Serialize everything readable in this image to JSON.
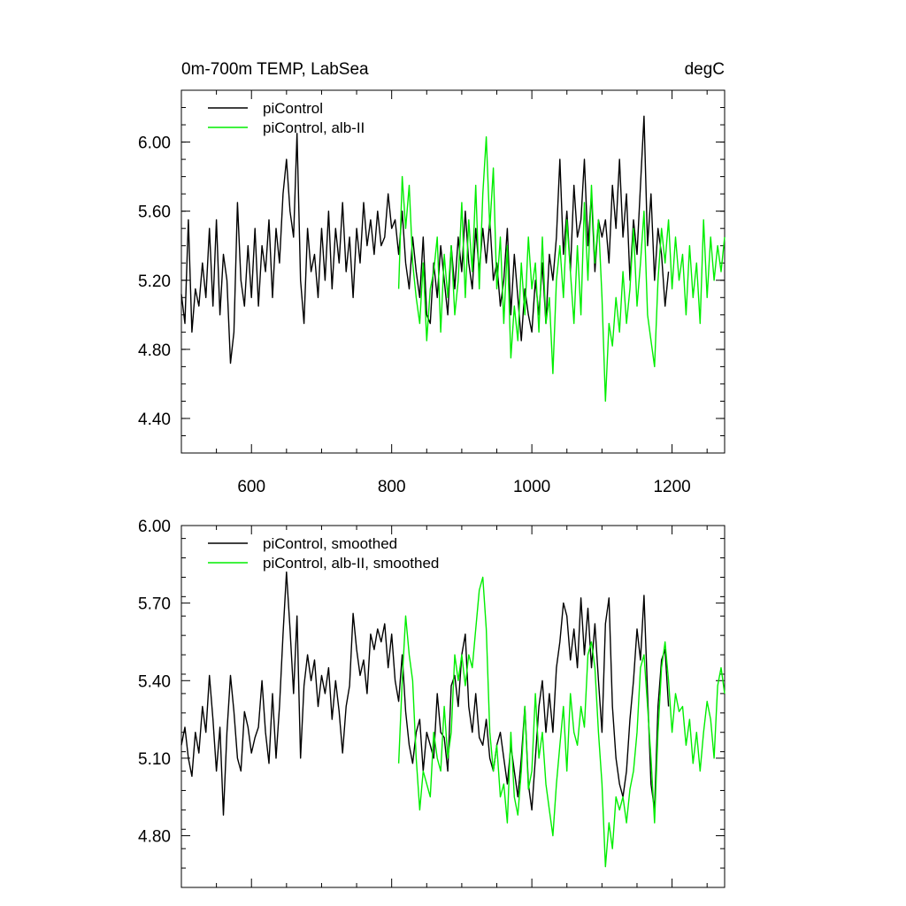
{
  "chart_data": [
    {
      "type": "line",
      "title": "0m-700m TEMP, LabSea",
      "units": "degC",
      "xlabel": "",
      "ylabel": "",
      "xlim": [
        500,
        1275
      ],
      "ylim": [
        4.2,
        6.3
      ],
      "xticks": [
        600,
        800,
        1000,
        1200
      ],
      "xtick_labels": [
        "600",
        "800",
        "1000",
        "1200"
      ],
      "yticks": [
        4.4,
        4.8,
        5.2,
        5.6,
        6.0
      ],
      "ytick_labels": [
        "4.40",
        "4.80",
        "5.20",
        "5.60",
        "6.00"
      ],
      "legend_position": "top-left",
      "series": [
        {
          "name": "piControl",
          "color": "#000000",
          "x": [
            500,
            505,
            510,
            515,
            520,
            525,
            530,
            535,
            540,
            545,
            550,
            555,
            560,
            565,
            570,
            575,
            580,
            585,
            590,
            595,
            600,
            605,
            610,
            615,
            620,
            625,
            630,
            635,
            640,
            645,
            650,
            655,
            660,
            665,
            670,
            675,
            680,
            685,
            690,
            695,
            700,
            705,
            710,
            715,
            720,
            725,
            730,
            735,
            740,
            745,
            750,
            755,
            760,
            765,
            770,
            775,
            780,
            785,
            790,
            795,
            800,
            805,
            810,
            815,
            820,
            825,
            830,
            835,
            840,
            845,
            850,
            855,
            860,
            865,
            870,
            875,
            880,
            885,
            890,
            895,
            900,
            905,
            910,
            915,
            920,
            925,
            930,
            935,
            940,
            945,
            950,
            955,
            960,
            965,
            970,
            975,
            980,
            985,
            990,
            995,
            1000,
            1005,
            1010,
            1015,
            1020,
            1025,
            1030,
            1035,
            1040,
            1045,
            1050,
            1055,
            1060,
            1065,
            1070,
            1075,
            1080,
            1085,
            1090,
            1095,
            1100,
            1105,
            1110,
            1115,
            1120,
            1125,
            1130,
            1135,
            1140,
            1145,
            1150,
            1155,
            1160,
            1165,
            1170,
            1175,
            1180,
            1185,
            1190,
            1195
          ],
          "values": [
            5.12,
            4.95,
            5.55,
            4.9,
            5.15,
            5.05,
            5.3,
            5.1,
            5.5,
            5.05,
            5.55,
            5.0,
            5.35,
            5.2,
            4.72,
            4.9,
            5.65,
            5.2,
            5.05,
            5.4,
            5.1,
            5.5,
            5.05,
            5.4,
            5.25,
            5.55,
            5.1,
            5.5,
            5.3,
            5.7,
            5.9,
            5.6,
            5.45,
            6.05,
            5.2,
            4.95,
            5.5,
            5.25,
            5.35,
            5.1,
            5.5,
            5.2,
            5.6,
            5.15,
            5.5,
            5.3,
            5.65,
            5.25,
            5.45,
            5.1,
            5.5,
            5.3,
            5.65,
            5.4,
            5.55,
            5.35,
            5.6,
            5.4,
            5.45,
            5.7,
            5.5,
            5.55,
            5.35,
            5.6,
            5.3,
            5.15,
            5.45,
            5.25,
            5.1,
            5.45,
            5.0,
            4.95,
            5.3,
            5.1,
            5.4,
            5.2,
            5.0,
            5.4,
            5.15,
            5.45,
            5.25,
            5.6,
            5.3,
            5.15,
            5.5,
            5.25,
            5.5,
            5.3,
            5.55,
            5.2,
            5.3,
            5.05,
            5.2,
            5.5,
            5.0,
            5.35,
            5.1,
            4.85,
            5.15,
            5.0,
            4.9,
            5.2,
            5.0,
            5.3,
            4.95,
            5.35,
            5.2,
            5.45,
            5.9,
            5.35,
            5.6,
            5.25,
            5.75,
            5.45,
            5.55,
            5.9,
            5.4,
            5.7,
            5.25,
            5.55,
            5.45,
            5.55,
            5.3,
            5.75,
            5.5,
            5.9,
            5.45,
            5.7,
            5.2,
            5.55,
            5.35,
            5.75,
            6.15,
            5.4,
            5.7,
            5.2,
            5.5,
            5.35,
            5.05,
            5.25
          ]
        },
        {
          "name": "piControl, alb-II",
          "color": "#00ee00",
          "x": [
            810,
            815,
            820,
            825,
            830,
            835,
            840,
            845,
            850,
            855,
            860,
            865,
            870,
            875,
            880,
            885,
            890,
            895,
            900,
            905,
            910,
            915,
            920,
            925,
            930,
            935,
            940,
            945,
            950,
            955,
            960,
            965,
            970,
            975,
            980,
            985,
            990,
            995,
            1000,
            1005,
            1010,
            1015,
            1020,
            1025,
            1030,
            1035,
            1040,
            1045,
            1050,
            1055,
            1060,
            1065,
            1070,
            1075,
            1080,
            1085,
            1090,
            1095,
            1100,
            1105,
            1110,
            1115,
            1120,
            1125,
            1130,
            1135,
            1140,
            1145,
            1150,
            1155,
            1160,
            1165,
            1170,
            1175,
            1180,
            1185,
            1190,
            1195,
            1200,
            1205,
            1210,
            1215,
            1220,
            1225,
            1230,
            1235,
            1240,
            1245,
            1250,
            1255,
            1260,
            1265,
            1270,
            1275
          ],
          "values": [
            5.15,
            5.8,
            5.5,
            5.75,
            5.3,
            5.1,
            4.95,
            5.3,
            4.85,
            5.15,
            5.25,
            5.45,
            4.9,
            5.35,
            5.1,
            5.4,
            5.0,
            5.2,
            5.65,
            5.1,
            5.55,
            5.25,
            5.75,
            5.15,
            5.7,
            6.03,
            5.5,
            5.85,
            5.15,
            5.45,
            4.95,
            5.4,
            4.75,
            5.05,
            4.85,
            5.3,
            5.0,
            5.45,
            5.15,
            5.3,
            4.9,
            5.45,
            4.95,
            5.1,
            4.66,
            5.2,
            5.4,
            5.1,
            5.55,
            5.25,
            4.95,
            5.4,
            5.0,
            5.65,
            5.2,
            5.75,
            5.3,
            5.55,
            5.1,
            4.5,
            4.95,
            4.82,
            5.1,
            4.9,
            5.25,
            4.95,
            5.15,
            5.5,
            5.05,
            5.3,
            5.6,
            5.0,
            4.85,
            4.7,
            5.2,
            5.5,
            5.3,
            5.55,
            5.15,
            5.45,
            5.2,
            5.35,
            5.0,
            5.4,
            5.1,
            5.3,
            4.95,
            5.55,
            5.1,
            5.45,
            5.2,
            5.4,
            5.25,
            5.45
          ]
        }
      ]
    },
    {
      "type": "line",
      "title": "",
      "xlabel": "",
      "ylabel": "",
      "xlim": [
        500,
        1275
      ],
      "ylim": [
        4.6,
        6.0
      ],
      "xticks": [
        600,
        800,
        1000,
        1200
      ],
      "yticks": [
        4.8,
        5.1,
        5.4,
        5.7,
        6.0
      ],
      "ytick_labels": [
        "4.80",
        "5.10",
        "5.40",
        "5.70",
        "6.00"
      ],
      "legend_position": "top-left",
      "series": [
        {
          "name": "piControl, smoothed",
          "color": "#000000",
          "x": [
            500,
            505,
            510,
            515,
            520,
            525,
            530,
            535,
            540,
            545,
            550,
            555,
            560,
            565,
            570,
            575,
            580,
            585,
            590,
            595,
            600,
            605,
            610,
            615,
            620,
            625,
            630,
            635,
            640,
            645,
            650,
            655,
            660,
            665,
            670,
            675,
            680,
            685,
            690,
            695,
            700,
            705,
            710,
            715,
            720,
            725,
            730,
            735,
            740,
            745,
            750,
            755,
            760,
            765,
            770,
            775,
            780,
            785,
            790,
            795,
            800,
            805,
            810,
            815,
            820,
            825,
            830,
            835,
            840,
            845,
            850,
            855,
            860,
            865,
            870,
            875,
            880,
            885,
            890,
            895,
            900,
            905,
            910,
            915,
            920,
            925,
            930,
            935,
            940,
            945,
            950,
            955,
            960,
            965,
            970,
            975,
            980,
            985,
            990,
            995,
            1000,
            1005,
            1010,
            1015,
            1020,
            1025,
            1030,
            1035,
            1040,
            1045,
            1050,
            1055,
            1060,
            1065,
            1070,
            1075,
            1080,
            1085,
            1090,
            1095,
            1100,
            1105,
            1110,
            1115,
            1120,
            1125,
            1130,
            1135,
            1140,
            1145,
            1150,
            1155,
            1160,
            1165,
            1170,
            1175,
            1180,
            1185,
            1190,
            1195
          ],
          "values": [
            5.15,
            5.22,
            5.1,
            5.03,
            5.2,
            5.12,
            5.3,
            5.2,
            5.42,
            5.25,
            5.05,
            5.22,
            4.88,
            5.2,
            5.42,
            5.28,
            5.1,
            5.05,
            5.28,
            5.22,
            5.12,
            5.18,
            5.22,
            5.4,
            5.2,
            5.08,
            5.35,
            5.1,
            5.3,
            5.58,
            5.82,
            5.6,
            5.35,
            5.65,
            5.1,
            5.38,
            5.5,
            5.4,
            5.48,
            5.3,
            5.42,
            5.35,
            5.45,
            5.25,
            5.4,
            5.28,
            5.12,
            5.3,
            5.38,
            5.66,
            5.52,
            5.42,
            5.48,
            5.35,
            5.58,
            5.52,
            5.6,
            5.55,
            5.62,
            5.45,
            5.58,
            5.4,
            5.32,
            5.5,
            5.28,
            5.15,
            5.08,
            5.2,
            5.25,
            5.05,
            5.2,
            5.15,
            5.1,
            5.35,
            5.2,
            5.18,
            5.05,
            5.38,
            5.42,
            5.3,
            5.5,
            5.58,
            5.3,
            5.2,
            5.35,
            5.18,
            5.15,
            5.25,
            5.1,
            5.05,
            5.15,
            5.2,
            5.1,
            5.0,
            5.15,
            5.05,
            4.95,
            5.1,
            5.3,
            5.0,
            4.9,
            5.1,
            5.3,
            5.4,
            5.2,
            5.35,
            5.2,
            5.45,
            5.55,
            5.7,
            5.65,
            5.48,
            5.6,
            5.45,
            5.72,
            5.5,
            5.68,
            5.45,
            5.62,
            5.4,
            5.2,
            5.62,
            5.72,
            5.3,
            5.1,
            5.0,
            4.95,
            5.05,
            5.25,
            5.4,
            5.6,
            5.48,
            5.73,
            5.35,
            5.0,
            4.9,
            5.3,
            5.48,
            5.52,
            5.3
          ]
        },
        {
          "name": "piControl, alb-II, smoothed",
          "color": "#00ee00",
          "x": [
            810,
            815,
            820,
            825,
            830,
            835,
            840,
            845,
            850,
            855,
            860,
            865,
            870,
            875,
            880,
            885,
            890,
            895,
            900,
            905,
            910,
            915,
            920,
            925,
            930,
            935,
            940,
            945,
            950,
            955,
            960,
            965,
            970,
            975,
            980,
            985,
            990,
            995,
            1000,
            1005,
            1010,
            1015,
            1020,
            1025,
            1030,
            1035,
            1040,
            1045,
            1050,
            1055,
            1060,
            1065,
            1070,
            1075,
            1080,
            1085,
            1090,
            1095,
            1100,
            1105,
            1110,
            1115,
            1120,
            1125,
            1130,
            1135,
            1140,
            1145,
            1150,
            1155,
            1160,
            1165,
            1170,
            1175,
            1180,
            1185,
            1190,
            1195,
            1200,
            1205,
            1210,
            1215,
            1220,
            1225,
            1230,
            1235,
            1240,
            1245,
            1250,
            1255,
            1260,
            1265,
            1270,
            1275
          ],
          "values": [
            5.08,
            5.4,
            5.65,
            5.5,
            5.4,
            5.1,
            4.9,
            5.05,
            5.0,
            4.95,
            5.2,
            5.1,
            5.05,
            5.3,
            5.1,
            5.2,
            5.5,
            5.4,
            5.5,
            5.38,
            5.5,
            5.45,
            5.6,
            5.75,
            5.8,
            5.6,
            5.2,
            5.05,
            5.15,
            4.95,
            5.0,
            4.85,
            5.2,
            4.95,
            4.88,
            5.05,
            5.3,
            4.98,
            5.05,
            5.35,
            5.1,
            5.2,
            5.0,
            4.9,
            4.8,
            5.0,
            5.15,
            5.3,
            5.05,
            5.35,
            5.2,
            5.15,
            5.3,
            5.22,
            5.5,
            5.55,
            5.45,
            5.2,
            5.0,
            4.68,
            4.85,
            4.75,
            4.95,
            4.9,
            4.95,
            4.85,
            4.98,
            5.05,
            5.2,
            5.45,
            5.5,
            5.3,
            5.1,
            4.85,
            5.2,
            5.45,
            5.55,
            5.4,
            5.2,
            5.35,
            5.28,
            5.3,
            5.15,
            5.25,
            5.08,
            5.2,
            5.05,
            5.2,
            5.32,
            5.25,
            5.1,
            5.38,
            5.45,
            5.35
          ]
        }
      ]
    }
  ]
}
